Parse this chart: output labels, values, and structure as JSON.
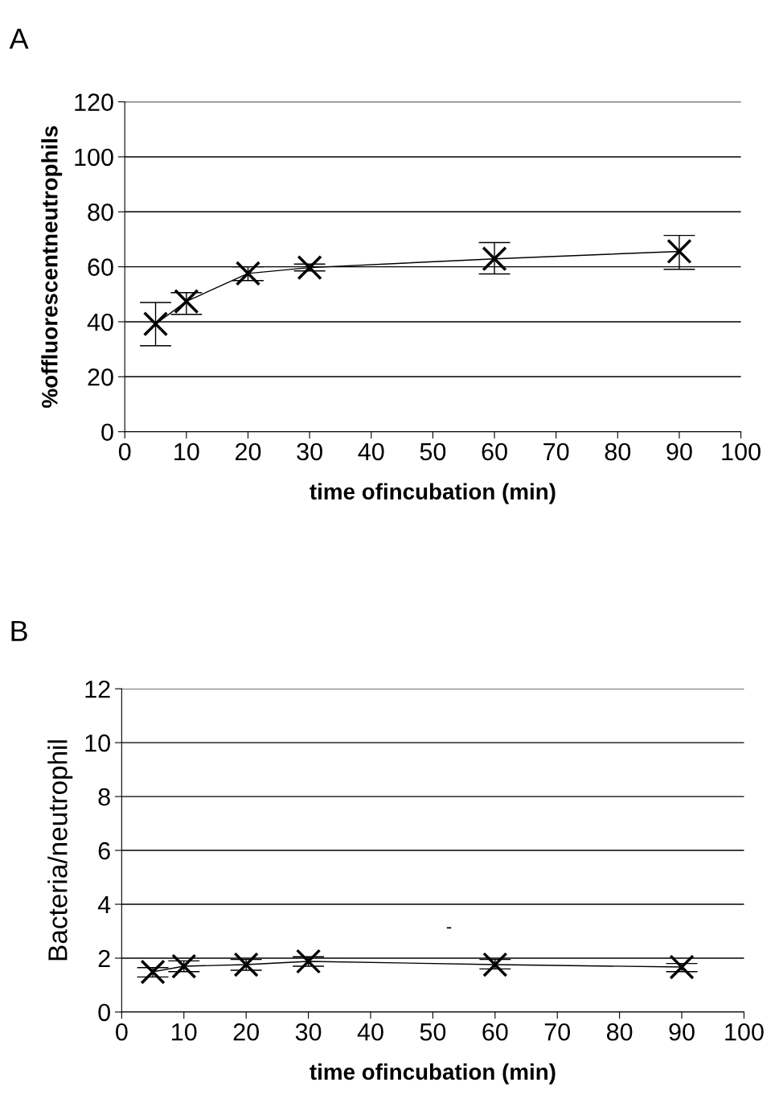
{
  "chart_data": [
    {
      "type": "line",
      "title": "A",
      "xlabel": "time ofincubation (min)",
      "ylabel": "%offluorescentneutrophils",
      "x": [
        5,
        10,
        20,
        30,
        60,
        90
      ],
      "series": [
        {
          "color": "#000000",
          "values": [
            39.2,
            47.4,
            57.6,
            59.7,
            62.9,
            65.6
          ],
          "errors": [
            [
              31.3,
              47
            ],
            [
              42.7,
              50.6
            ],
            [
              55,
              60
            ],
            [
              58.5,
              61
            ],
            [
              57.4,
              68.8
            ],
            [
              59.1,
              71.4
            ]
          ]
        }
      ],
      "xlim": [
        0,
        100
      ],
      "xticks": [
        0,
        10,
        20,
        30,
        40,
        50,
        60,
        70,
        80,
        90,
        100
      ],
      "ylim": [
        0,
        120
      ],
      "yticks": [
        0,
        20,
        40,
        60,
        80,
        100,
        120
      ],
      "grid": "y",
      "marker": "cross",
      "line_style": "solid",
      "legend": false
    },
    {
      "type": "line",
      "title": "B",
      "xlabel": "time ofincubation (min)",
      "ylabel": "Bacteria/neutrophil",
      "x": [
        5,
        10,
        20,
        30,
        60,
        90
      ],
      "series": [
        {
          "color": "#000000",
          "values": [
            1.49,
            1.7,
            1.76,
            1.88,
            1.76,
            1.67
          ],
          "errors": [
            [
              1.3,
              1.65
            ],
            [
              1.5,
              1.9
            ],
            [
              1.55,
              1.95
            ],
            [
              1.7,
              2.05
            ],
            [
              1.6,
              1.95
            ],
            [
              1.5,
              1.8
            ]
          ]
        }
      ],
      "annotations": [
        "-"
      ],
      "xlim": [
        0,
        100
      ],
      "xticks": [
        0,
        10,
        20,
        30,
        40,
        50,
        60,
        70,
        80,
        90,
        100
      ],
      "ylim": [
        0,
        12
      ],
      "yticks": [
        0,
        2,
        4,
        6,
        8,
        10,
        12
      ],
      "grid": "y",
      "marker": "cross",
      "line_style": "solid",
      "legend": false
    }
  ]
}
